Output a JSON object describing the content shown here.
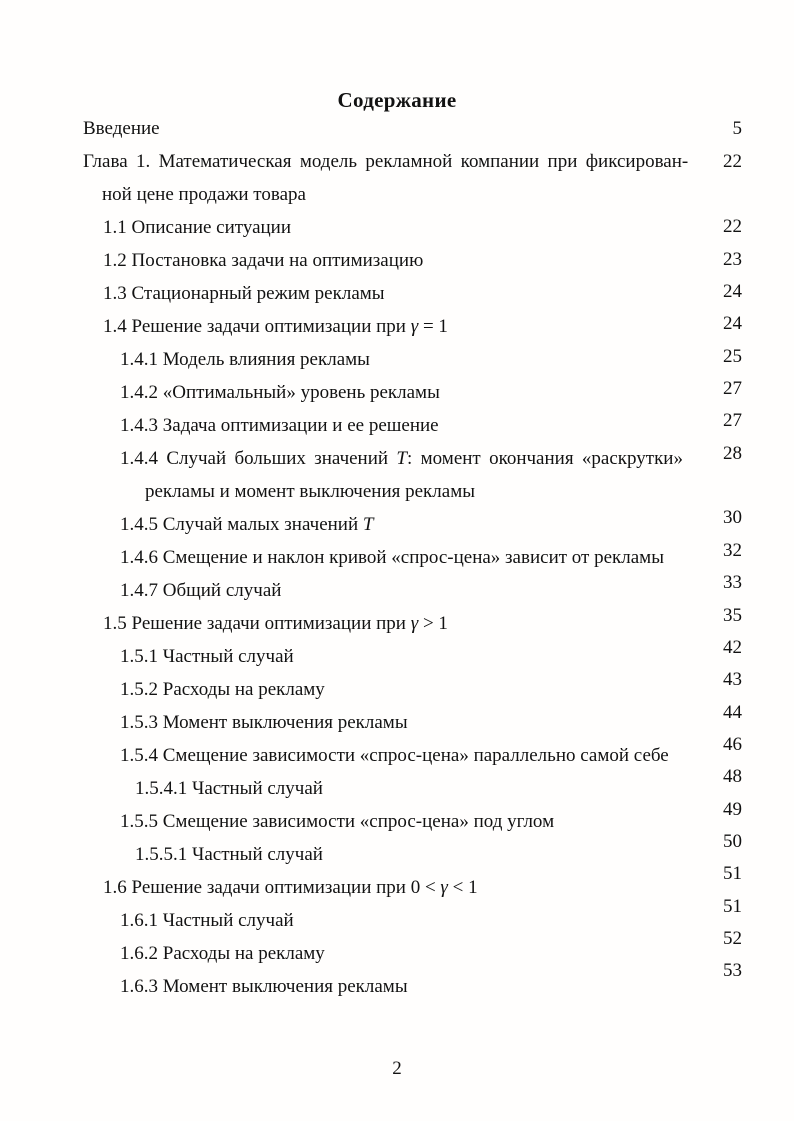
{
  "page": {
    "title": "Содержание",
    "footer_page_number": "2"
  },
  "toc": {
    "entries": [
      {
        "level": 0,
        "lines": [
          "Введение"
        ],
        "page": "5"
      },
      {
        "level": 0,
        "lines": [
          "Глава 1. Математическая модель рекламной компании при фиксирован-",
          "ной цене продажи товара"
        ],
        "page": "22"
      },
      {
        "level": 1,
        "lines": [
          "1.1 Описание ситуации"
        ],
        "page": "22"
      },
      {
        "level": 1,
        "lines": [
          "1.2 Постановка задачи на оптимизацию"
        ],
        "page": "23"
      },
      {
        "level": 1,
        "lines": [
          "1.3 Стационарный режим рекламы"
        ],
        "page": "24"
      },
      {
        "level": 1,
        "lines": [
          "1.4 Решение задачи оптимизации при γ = 1"
        ],
        "page": "24"
      },
      {
        "level": 2,
        "lines": [
          "1.4.1 Модель влияния рекламы"
        ],
        "page": "25"
      },
      {
        "level": 2,
        "lines": [
          "1.4.2 «Оптимальный» уровень рекламы"
        ],
        "page": "27"
      },
      {
        "level": 2,
        "lines": [
          "1.4.3 Задача оптимизации и ее решение"
        ],
        "page": "27"
      },
      {
        "level": 2,
        "lines": [
          "1.4.4 Случай больших значений T: момент окончания «раскрутки»",
          "рекламы и момент выключения рекламы"
        ],
        "page": "28"
      },
      {
        "level": 2,
        "lines": [
          "1.4.5 Случай малых значений T"
        ],
        "page": "30"
      },
      {
        "level": 2,
        "lines": [
          "1.4.6 Смещение и наклон кривой «спрос-цена» зависит от рекламы"
        ],
        "page": "32"
      },
      {
        "level": 2,
        "lines": [
          "1.4.7 Общий случай"
        ],
        "page": "33"
      },
      {
        "level": 1,
        "lines": [
          "1.5 Решение задачи оптимизации при γ > 1"
        ],
        "page": "35"
      },
      {
        "level": 2,
        "lines": [
          "1.5.1 Частный случай"
        ],
        "page": "42"
      },
      {
        "level": 2,
        "lines": [
          "1.5.2 Расходы на рекламу"
        ],
        "page": "43"
      },
      {
        "level": 2,
        "lines": [
          "1.5.3 Момент выключения рекламы"
        ],
        "page": "44"
      },
      {
        "level": 2,
        "lines": [
          "1.5.4 Смещение зависимости «спрос-цена» параллельно самой себе"
        ],
        "page": "46"
      },
      {
        "level": 3,
        "lines": [
          "1.5.4.1 Частный случай"
        ],
        "page": "48"
      },
      {
        "level": 2,
        "lines": [
          "1.5.5 Смещение зависимости «спрос-цена» под углом"
        ],
        "page": "49"
      },
      {
        "level": 3,
        "lines": [
          "1.5.5.1 Частный случай"
        ],
        "page": "50"
      },
      {
        "level": 1,
        "lines": [
          "1.6 Решение задачи оптимизации при 0 < γ < 1"
        ],
        "page": "51"
      },
      {
        "level": 2,
        "lines": [
          "1.6.1 Частный случай"
        ],
        "page": "51"
      },
      {
        "level": 2,
        "lines": [
          "1.6.2 Расходы на рекламу"
        ],
        "page": "52"
      },
      {
        "level": 2,
        "lines": [
          "1.6.3 Момент выключения рекламы"
        ],
        "page": "53"
      }
    ]
  }
}
